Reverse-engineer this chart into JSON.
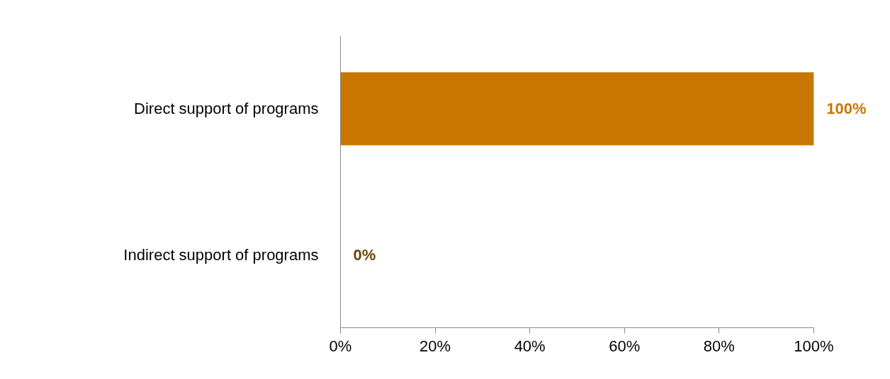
{
  "chart_data": {
    "type": "bar",
    "orientation": "horizontal",
    "categories": [
      "Direct support of programs",
      "Indirect support of programs"
    ],
    "values": [
      100,
      0
    ],
    "colors": [
      "#c87600",
      "#6b4400"
    ],
    "value_labels": [
      "100%",
      "0%"
    ],
    "xlim": [
      0,
      100
    ],
    "xticks": [
      {
        "value": 0,
        "label": "0%"
      },
      {
        "value": 20,
        "label": "20%"
      },
      {
        "value": 40,
        "label": "40%"
      },
      {
        "value": 60,
        "label": "60%"
      },
      {
        "value": 80,
        "label": "80%"
      },
      {
        "value": 100,
        "label": "100%"
      }
    ],
    "grid": false
  }
}
